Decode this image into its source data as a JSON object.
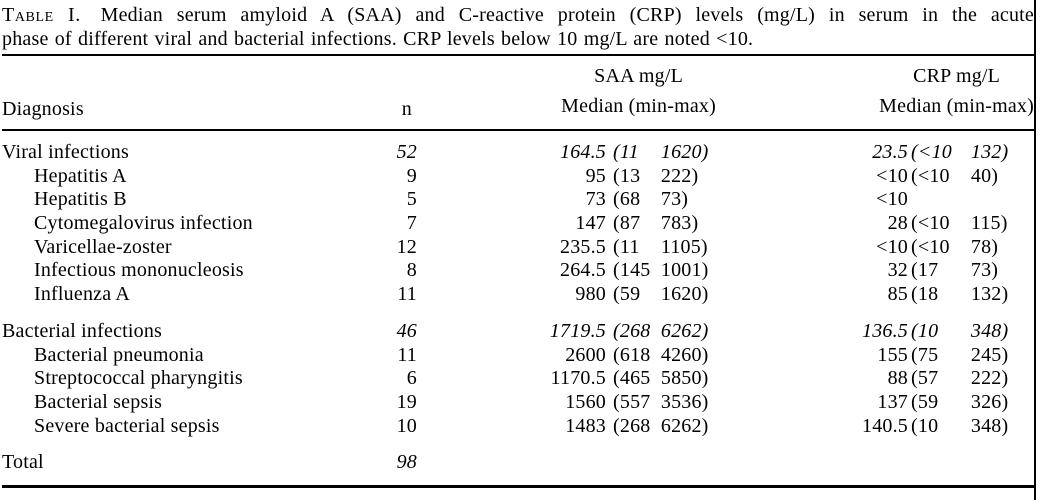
{
  "caption": {
    "label": "Table I.",
    "line1": "Median serum amyloid A (SAA) and C-reactive protein (CRP) levels (mg/L) in serum in the acute",
    "line2": "phase of different viral and bacterial infections. CRP levels below 10 mg/L are noted <10."
  },
  "header": {
    "diagnosis": "Diagnosis",
    "n": "n",
    "saa_unit": "SAA mg/L",
    "saa_sub": "Median (min-max)",
    "crp_unit": "CRP mg/L",
    "crp_sub": "Median (min-max)"
  },
  "rows": [
    {
      "label": "Viral infections",
      "group": true,
      "gap_before": false,
      "n": "52",
      "saa": {
        "median": "164.5",
        "min": "11",
        "max": "1620"
      },
      "crp": {
        "median": "23.5",
        "min": "<10",
        "max": "132"
      }
    },
    {
      "label": "Hepatitis A",
      "indent": true,
      "n": "9",
      "saa": {
        "median": "95",
        "min": "13",
        "max": "222"
      },
      "crp": {
        "median": "<10",
        "min": "<10",
        "max": "40"
      }
    },
    {
      "label": "Hepatitis B",
      "indent": true,
      "n": "5",
      "saa": {
        "median": "73",
        "min": "68",
        "max": "73"
      },
      "crp": {
        "median": "<10"
      }
    },
    {
      "label": "Cytomegalovirus infection",
      "indent": true,
      "n": "7",
      "saa": {
        "median": "147",
        "min": "87",
        "max": "783"
      },
      "crp": {
        "median": "28",
        "min": "<10",
        "max": "115"
      }
    },
    {
      "label": "Varicellae-zoster",
      "indent": true,
      "n": "12",
      "saa": {
        "median": "235.5",
        "min": "11",
        "max": "1105"
      },
      "crp": {
        "median": "<10",
        "min": "<10",
        "max": "78"
      }
    },
    {
      "label": "Infectious mononucleosis",
      "indent": true,
      "n": "8",
      "saa": {
        "median": "264.5",
        "min": "145",
        "max": "1001"
      },
      "crp": {
        "median": "32",
        "min": "17",
        "max": "73"
      }
    },
    {
      "label": "Influenza A",
      "indent": true,
      "n": "11",
      "saa": {
        "median": "980",
        "min": "59",
        "max": "1620"
      },
      "crp": {
        "median": "85",
        "min": "18",
        "max": "132"
      }
    },
    {
      "label": "Bacterial infections",
      "group": true,
      "gap_before": true,
      "n": "46",
      "saa": {
        "median": "1719.5",
        "min": "268",
        "max": "6262"
      },
      "crp": {
        "median": "136.5",
        "min": "10",
        "max": "348"
      }
    },
    {
      "label": "Bacterial pneumonia",
      "indent": true,
      "n": "11",
      "saa": {
        "median": "2600",
        "min": "618",
        "max": "4260"
      },
      "crp": {
        "median": "155",
        "min": "75",
        "max": "245"
      }
    },
    {
      "label": "Streptococcal pharyngitis",
      "indent": true,
      "n": "6",
      "saa": {
        "median": "1170.5",
        "min": "465",
        "max": "5850"
      },
      "crp": {
        "median": "88",
        "min": "57",
        "max": "222"
      }
    },
    {
      "label": "Bacterial sepsis",
      "indent": true,
      "n": "19",
      "saa": {
        "median": "1560",
        "min": "557",
        "max": "3536"
      },
      "crp": {
        "median": "137",
        "min": "59",
        "max": "326"
      }
    },
    {
      "label": "Severe bacterial sepsis",
      "indent": true,
      "n": "10",
      "saa": {
        "median": "1483",
        "min": "268",
        "max": "6262"
      },
      "crp": {
        "median": "140.5",
        "min": "10",
        "max": "348"
      }
    },
    {
      "label": "Total",
      "group": true,
      "gap_before": true,
      "n": "98"
    }
  ]
}
